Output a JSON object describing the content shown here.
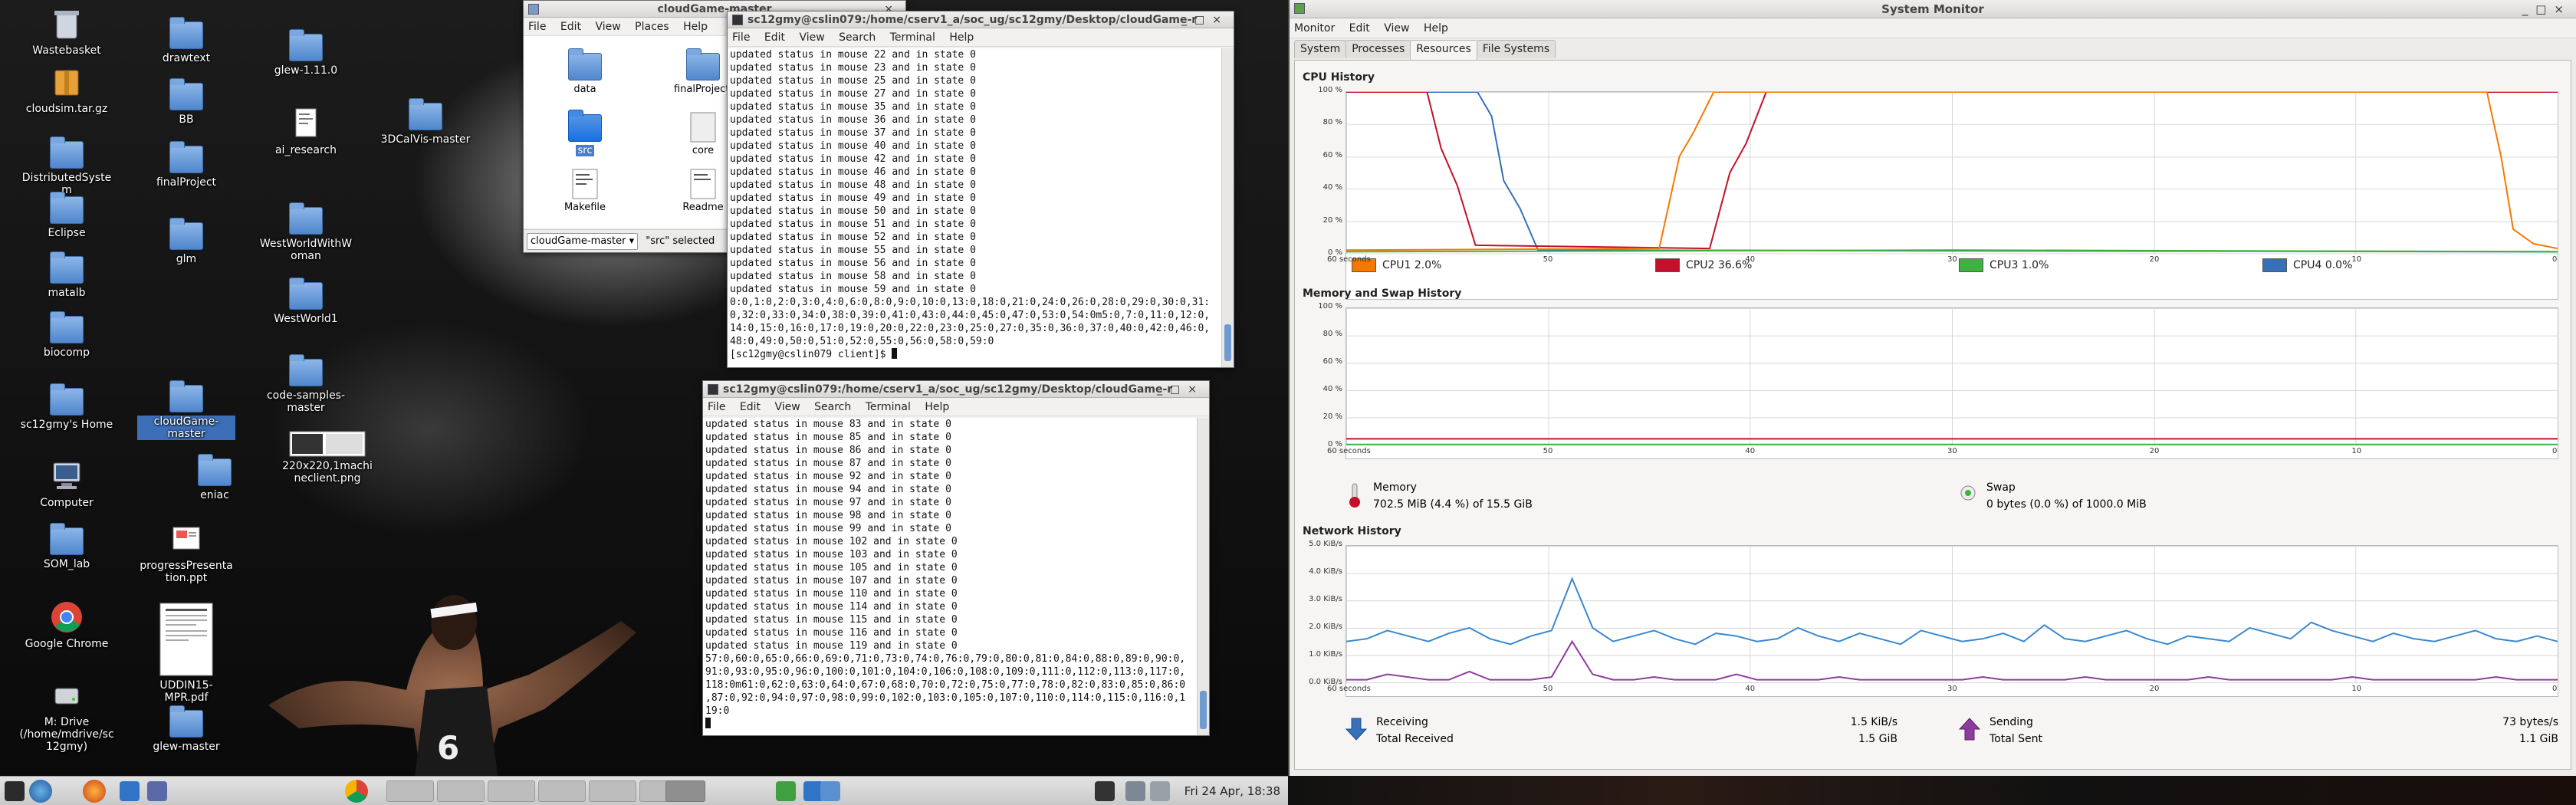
{
  "desktop": {
    "icons": [
      {
        "label": "Wastebasket",
        "kind": "trash-icon"
      },
      {
        "label": "cloudsim.tar.gz",
        "kind": "archive-icon"
      },
      {
        "label": "DistributedSystem",
        "kind": "folder-icon"
      },
      {
        "label": "Eclipse",
        "kind": "folder-icon"
      },
      {
        "label": "matalb",
        "kind": "folder-icon"
      },
      {
        "label": "biocomp",
        "kind": "folder-icon"
      },
      {
        "label": "sc12gmy's Home",
        "kind": "home-folder-icon"
      },
      {
        "label": "Computer",
        "kind": "computer-icon"
      },
      {
        "label": "SOM_lab",
        "kind": "folder-icon"
      },
      {
        "label": "Google Chrome",
        "kind": "chrome-icon"
      },
      {
        "label": "M: Drive (/home/mdrive/sc12gmy)",
        "kind": "drive-icon"
      },
      {
        "label": "drawtext",
        "kind": "folder-icon"
      },
      {
        "label": "BB",
        "kind": "folder-icon"
      },
      {
        "label": "finalProject",
        "kind": "folder-icon"
      },
      {
        "label": "glm",
        "kind": "folder-icon"
      },
      {
        "label": "cloudGame-master",
        "kind": "folder-icon"
      },
      {
        "label": "eniac",
        "kind": "folder-icon"
      },
      {
        "label": "progressPresentation.ppt",
        "kind": "presentation-icon"
      },
      {
        "label": "UDDIN15-MPR.pdf",
        "kind": "pdf-icon"
      },
      {
        "label": "glew-master",
        "kind": "folder-icon"
      },
      {
        "label": "glew-1.11.0",
        "kind": "folder-icon"
      },
      {
        "label": "ai_research",
        "kind": "file-icon"
      },
      {
        "label": "WestWorldWithWoman",
        "kind": "folder-icon"
      },
      {
        "label": "WestWorld1",
        "kind": "folder-icon"
      },
      {
        "label": "code-samples-master",
        "kind": "folder-icon"
      },
      {
        "label": "220x220,1machineclient.png",
        "kind": "image-icon"
      },
      {
        "label": "3DCalVis-master",
        "kind": "folder-icon"
      }
    ]
  },
  "file_manager": {
    "title": "cloudGame-master",
    "menu": [
      "File",
      "Edit",
      "View",
      "Places",
      "Help"
    ],
    "items": [
      "data",
      "finalProjecti",
      "src",
      "core",
      "Makefile",
      "Readme"
    ],
    "selected": "src",
    "path_combo": "cloudGame-master",
    "status": "\"src\" selected"
  },
  "terminal1": {
    "title": "sc12gmy@cslin079:/home/cserv1_a/soc_ug/sc12gmy/Desktop/cloudGame-r",
    "menu": [
      "File",
      "Edit",
      "View",
      "Search",
      "Terminal",
      "Help"
    ],
    "lines": [
      "updated status in mouse 22 and in state 0",
      "updated status in mouse 23 and in state 0",
      "updated status in mouse 25 and in state 0",
      "updated status in mouse 27 and in state 0",
      "updated status in mouse 35 and in state 0",
      "updated status in mouse 36 and in state 0",
      "updated status in mouse 37 and in state 0",
      "updated status in mouse 40 and in state 0",
      "updated status in mouse 42 and in state 0",
      "updated status in mouse 46 and in state 0",
      "updated status in mouse 48 and in state 0",
      "updated status in mouse 49 and in state 0",
      "updated status in mouse 50 and in state 0",
      "updated status in mouse 51 and in state 0",
      "updated status in mouse 52 and in state 0",
      "updated status in mouse 55 and in state 0",
      "updated status in mouse 56 and in state 0",
      "updated status in mouse 58 and in state 0",
      "updated status in mouse 59 and in state 0",
      "0:0,1:0,2:0,3:0,4:0,6:0,8:0,9:0,10:0,13:0,18:0,21:0,24:0,26:0,28:0,29:0,30:0,31:",
      "0,32:0,33:0,34:0,38:0,39:0,41:0,43:0,44:0,45:0,47:0,53:0,54:0m5:0,7:0,11:0,12:0,",
      "14:0,15:0,16:0,17:0,19:0,20:0,22:0,23:0,25:0,27:0,35:0,36:0,37:0,40:0,42:0,46:0,",
      "48:0,49:0,50:0,51:0,52:0,55:0,56:0,58:0,59:0",
      "[sc12gmy@cslin079 client]$ "
    ]
  },
  "terminal2": {
    "title": "sc12gmy@cslin079:/home/cserv1_a/soc_ug/sc12gmy/Desktop/cloudGame-r",
    "menu": [
      "File",
      "Edit",
      "View",
      "Search",
      "Terminal",
      "Help"
    ],
    "lines": [
      "updated status in mouse 83 and in state 0",
      "updated status in mouse 85 and in state 0",
      "updated status in mouse 86 and in state 0",
      "updated status in mouse 87 and in state 0",
      "updated status in mouse 92 and in state 0",
      "updated status in mouse 94 and in state 0",
      "updated status in mouse 97 and in state 0",
      "updated status in mouse 98 and in state 0",
      "updated status in mouse 99 and in state 0",
      "updated status in mouse 102 and in state 0",
      "updated status in mouse 103 and in state 0",
      "updated status in mouse 105 and in state 0",
      "updated status in mouse 107 and in state 0",
      "updated status in mouse 110 and in state 0",
      "updated status in mouse 114 and in state 0",
      "updated status in mouse 115 and in state 0",
      "updated status in mouse 116 and in state 0",
      "updated status in mouse 119 and in state 0",
      "57:0,60:0,65:0,66:0,69:0,71:0,73:0,74:0,76:0,79:0,80:0,81:0,84:0,88:0,89:0,90:0,",
      "91:0,93:0,95:0,96:0,100:0,101:0,104:0,106:0,108:0,109:0,111:0,112:0,113:0,117:0,",
      "118:0m61:0,62:0,63:0,64:0,67:0,68:0,70:0,72:0,75:0,77:0,78:0,82:0,83:0,85:0,86:0",
      ",87:0,92:0,94:0,97:0,98:0,99:0,102:0,103:0,105:0,107:0,110:0,114:0,115:0,116:0,1",
      "19:0",
      ""
    ]
  },
  "taskbar": {
    "clock": "Fri 24 Apr, 18:38"
  },
  "system_monitor": {
    "title": "System Monitor",
    "menu": [
      "Monitor",
      "Edit",
      "View",
      "Help"
    ],
    "tabs": [
      "System",
      "Processes",
      "Resources",
      "File Systems"
    ],
    "active_tab": "Resources",
    "cpu": {
      "heading": "CPU History",
      "y_ticks": [
        "100 %",
        "80 %",
        "60 %",
        "40 %",
        "20 %",
        "0 %"
      ],
      "x_ticks": [
        "60 seconds",
        "50",
        "40",
        "30",
        "20",
        "10",
        "0"
      ],
      "legend": [
        {
          "name": "CPU1",
          "value": "2.0%",
          "color": "#f57900"
        },
        {
          "name": "CPU2",
          "value": "36.6%",
          "color": "#c4102a"
        },
        {
          "name": "CPU3",
          "value": "1.0%",
          "color": "#3db33d"
        },
        {
          "name": "CPU4",
          "value": "0.0%",
          "color": "#3670b8"
        }
      ]
    },
    "memory": {
      "heading": "Memory and Swap History",
      "y_ticks": [
        "100 %",
        "80 %",
        "60 %",
        "40 %",
        "20 %",
        "0 %"
      ],
      "x_ticks": [
        "60 seconds",
        "50",
        "40",
        "30",
        "20",
        "10",
        "0"
      ],
      "memory_label": "Memory",
      "memory_value": "702.5 MiB (4.4 %) of 15.5 GiB",
      "swap_label": "Swap",
      "swap_value": "0 bytes (0.0 %) of 1000.0 MiB"
    },
    "network": {
      "heading": "Network History",
      "y_ticks": [
        "5.0 KiB/s",
        "4.0 KiB/s",
        "3.0 KiB/s",
        "2.0 KiB/s",
        "1.0 KiB/s",
        "0.0 KiB/s"
      ],
      "x_ticks": [
        "60 seconds",
        "50",
        "40",
        "30",
        "20",
        "10",
        "0"
      ],
      "receiving_label": "Receiving",
      "receiving_rate": "1.5 KiB/s",
      "total_received_label": "Total Received",
      "total_received": "1.5 GiB",
      "sending_label": "Sending",
      "sending_rate": "73 bytes/s",
      "total_sent_label": "Total Sent",
      "total_sent": "1.1 GiB"
    }
  }
}
